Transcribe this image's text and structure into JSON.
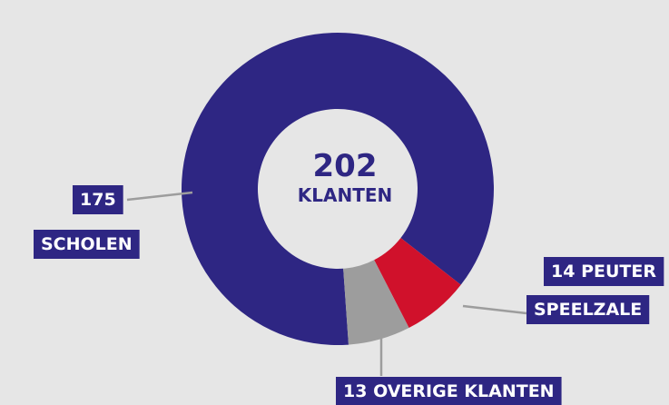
{
  "chart_data": {
    "type": "donut",
    "center_value": 202,
    "center_label": "KLANTEN",
    "categories": [
      [
        "SCHOLEN"
      ],
      [
        "PEUTER",
        "SPEELZALE"
      ],
      [
        "OVERIGE KLANTEN"
      ]
    ],
    "values": [
      175,
      14,
      13
    ],
    "colors": [
      "#2e2683",
      "#d0112b",
      "#9d9d9d"
    ]
  }
}
